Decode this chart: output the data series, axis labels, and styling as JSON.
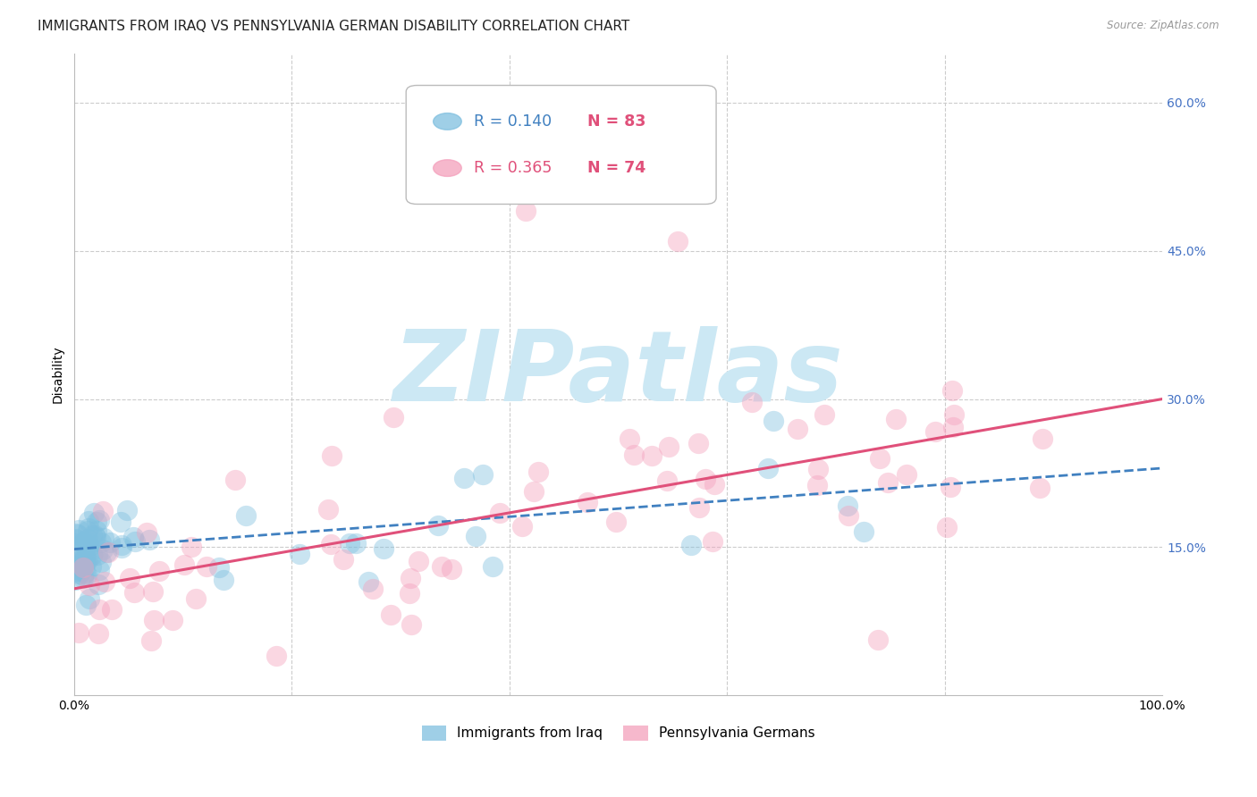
{
  "title": "IMMIGRANTS FROM IRAQ VS PENNSYLVANIA GERMAN DISABILITY CORRELATION CHART",
  "source": "Source: ZipAtlas.com",
  "ylabel": "Disability",
  "xlim": [
    0.0,
    1.0
  ],
  "ylim": [
    0.0,
    0.65
  ],
  "blue_color": "#7fbfdf",
  "pink_color": "#f4a0bc",
  "blue_line_color": "#4080c0",
  "pink_line_color": "#e0507a",
  "grid_color": "#cccccc",
  "background_color": "#ffffff",
  "watermark_text": "ZIPatlas",
  "watermark_color": "#cce8f4",
  "blue_trend_y_start": 0.148,
  "blue_trend_y_end": 0.23,
  "pink_trend_y_start": 0.108,
  "pink_trend_y_end": 0.3,
  "right_tick_color": "#4472c4",
  "title_fontsize": 11,
  "axis_label_fontsize": 10,
  "tick_fontsize": 10,
  "legend_r1_color": "#4080c0",
  "legend_r2_color": "#e0507a",
  "legend_n_color": "#e0507a"
}
